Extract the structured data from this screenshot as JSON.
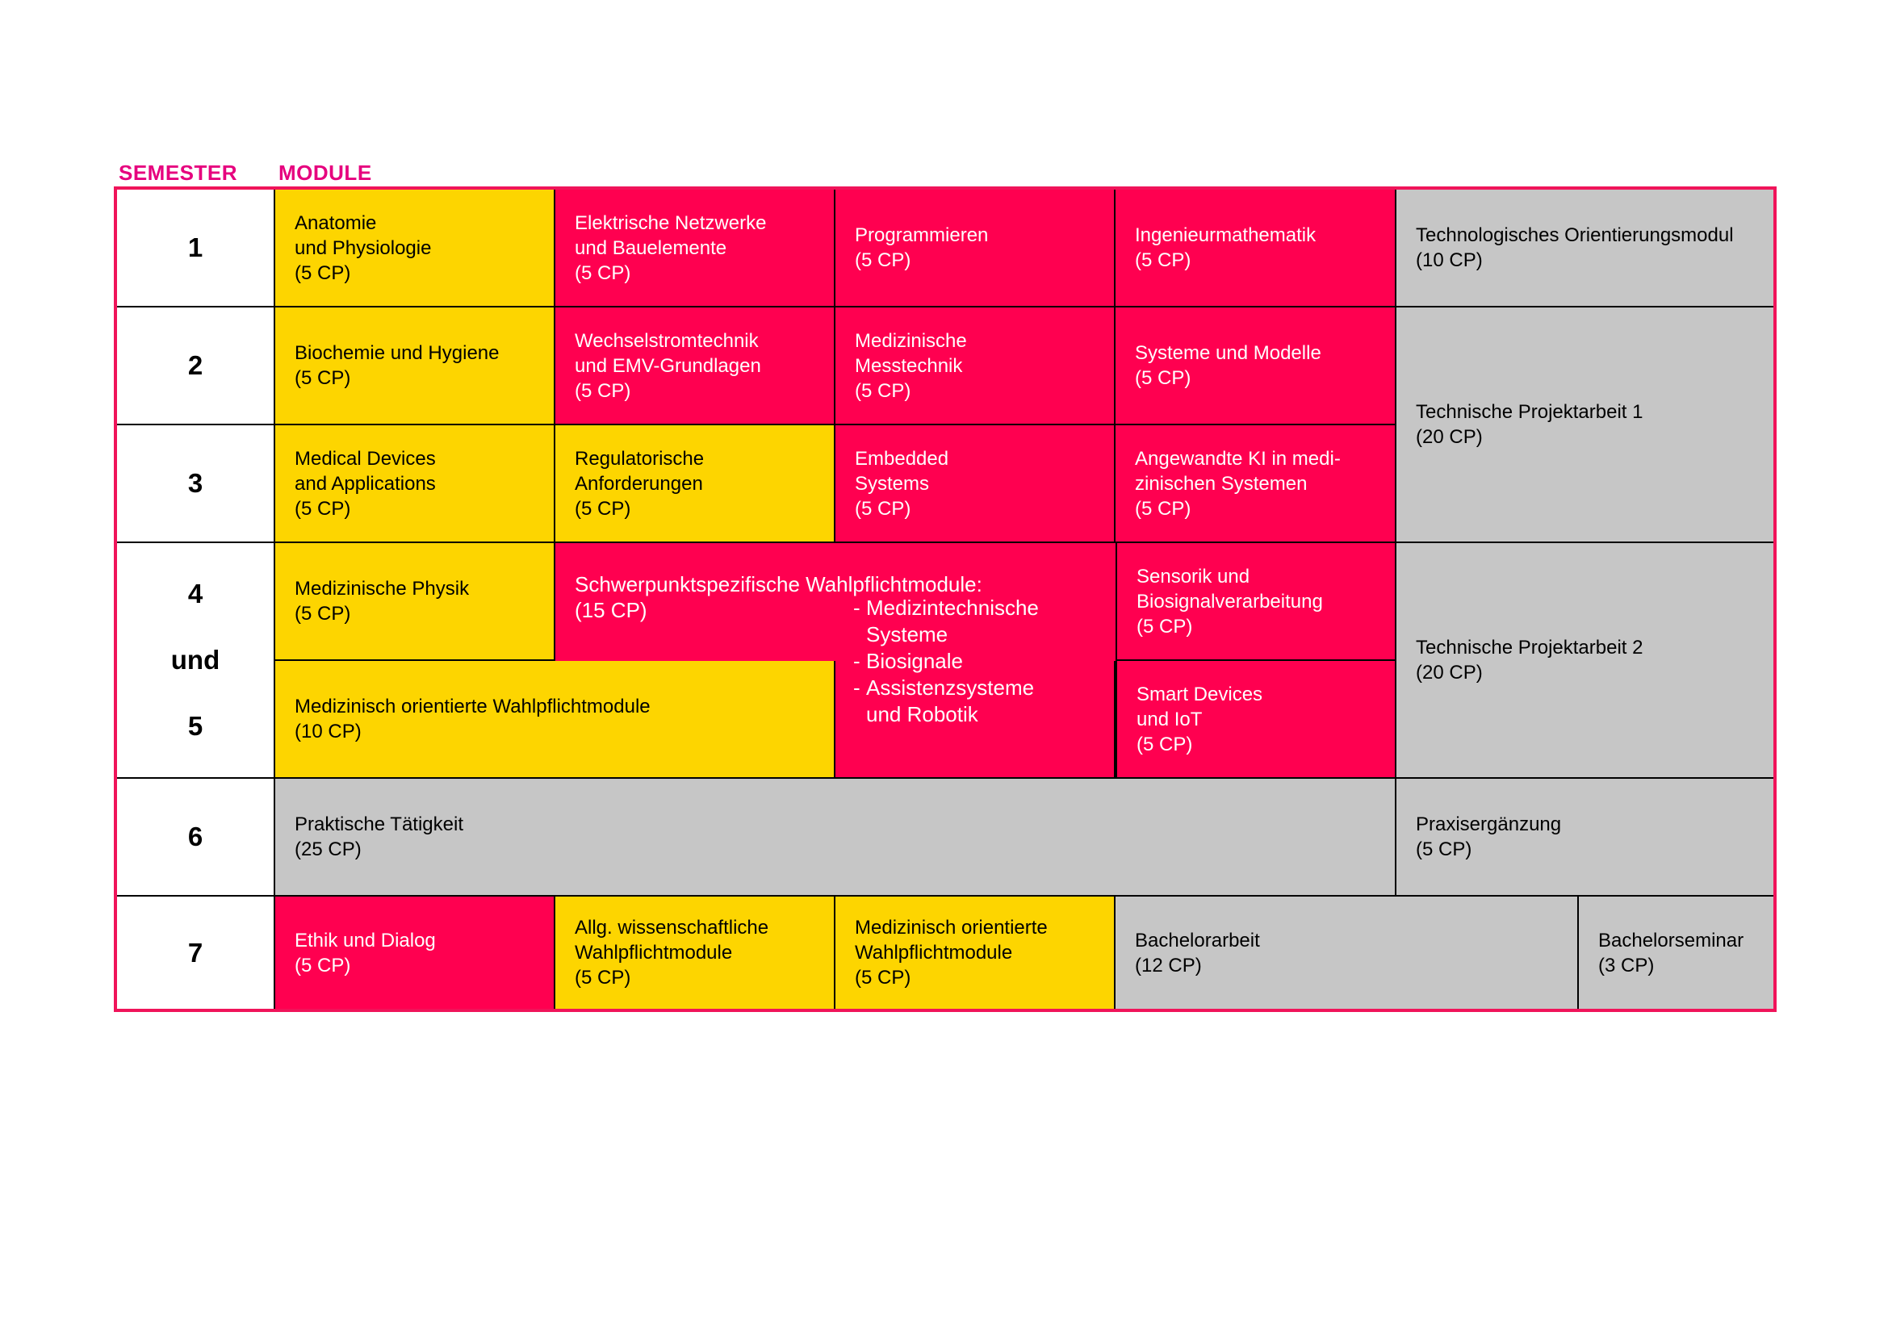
{
  "headers": {
    "semester": "SEMESTER",
    "module": "MODULE"
  },
  "semesters": {
    "s1": "1",
    "s2": "2",
    "s3": "3",
    "s4": "4",
    "s4_und": "und",
    "s5": "5",
    "s6": "6",
    "s7": "7"
  },
  "colors": {
    "frame": "#f0145a",
    "header": "#e6007e",
    "yellow": "#fdd500",
    "pink": "#ff0050",
    "gray": "#c6c6c6"
  },
  "modules": {
    "anatomie": "Anatomie\nund Physiologie\n(5 CP)",
    "elektrische_netzwerke": "Elektrische Netzwerke\nund Bauelemente\n(5 CP)",
    "programmieren": "Programmieren\n(5 CP)",
    "ingenieurmathematik": "Ingenieurmathematik\n(5 CP)",
    "technologisches_orientierungsmodul": "Technologisches Orientierungsmodul\n(10 CP)",
    "biochemie": "Biochemie und Hygiene\n(5 CP)",
    "wechselstromtechnik": "Wechselstromtechnik\nund EMV-Grundlagen\n(5 CP)",
    "medizinische_messtechnik": "Medizinische\nMesstechnik\n(5 CP)",
    "systeme_modelle": "Systeme und Modelle\n(5 CP)",
    "projektarbeit_1": "Technische Projektarbeit 1\n(20 CP)",
    "medical_devices": "Medical Devices\nand Applications\n(5 CP)",
    "regulatorische": "Regulatorische\nAnforderungen\n(5 CP)",
    "embedded": "Embedded\nSystems\n(5 CP)",
    "angewandte_ki": "Angewandte KI in medi-\nzinischen Systemen\n(5 CP)",
    "medizinische_physik": "Medizinische Physik\n(5 CP)",
    "schwerpunkt_title": "Schwerpunktspezifische Wahlpflichtmodule:\n(15 CP)",
    "schwerpunkt_items": [
      "Medizintechnische\nSysteme",
      "Biosignale",
      "Assistenzsysteme\nund Robotik"
    ],
    "sensorik": "Sensorik und\nBiosignalverarbeitung\n(5 CP)",
    "projektarbeit_2": "Technische Projektarbeit 2\n(20 CP)",
    "med_wahlpflicht_10": "Medizinisch orientierte Wahlpflichtmodule\n(10 CP)",
    "smart_devices": "Smart Devices\nund IoT\n(5 CP)",
    "praktische_taetigkeit": "Praktische Tätigkeit\n(25 CP)",
    "praxisergaenzung": "Praxisergänzung\n(5 CP)",
    "ethik": "Ethik und Dialog\n(5 CP)",
    "allg_wahlpflicht": "Allg. wissenschaftliche\nWahlpflichtmodule\n(5 CP)",
    "med_wahlpflicht_5": "Medizinisch orientierte\nWahlpflichtmodule\n(5 CP)",
    "bachelorarbeit": "Bachelorarbeit\n(12 CP)",
    "bachelorseminar": "Bachelorseminar\n(3 CP)"
  }
}
